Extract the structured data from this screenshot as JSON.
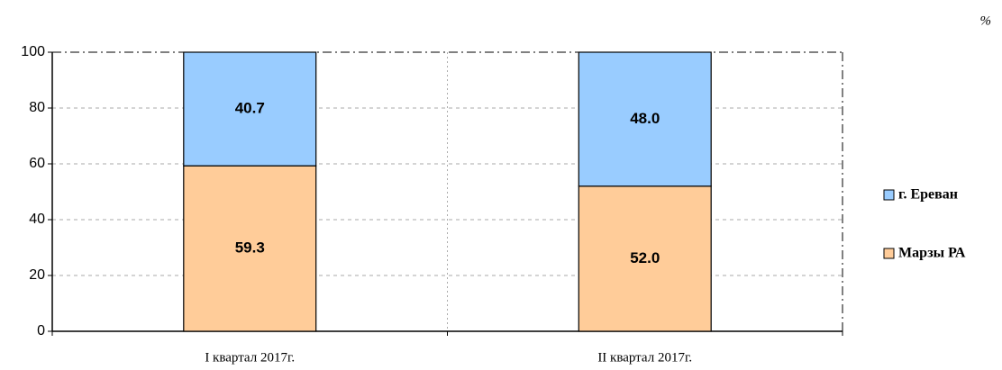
{
  "chart_data": {
    "type": "stacked_bar",
    "y_axis_label": "%",
    "categories": [
      "I квартал 2017г.",
      "II квартал 2017г."
    ],
    "series": [
      {
        "name": "Марзы РА",
        "color": "#ffcc99",
        "values": [
          59.3,
          52.0
        ],
        "value_labels": [
          "59.3",
          "52.0"
        ]
      },
      {
        "name": "г. Ереван",
        "color": "#99ccff",
        "values": [
          40.7,
          48.0
        ],
        "value_labels": [
          "40.7",
          "48.0"
        ]
      }
    ],
    "ylim": [
      0,
      100
    ],
    "yticks": [
      0,
      20,
      40,
      60,
      80,
      100
    ],
    "grid": true
  }
}
